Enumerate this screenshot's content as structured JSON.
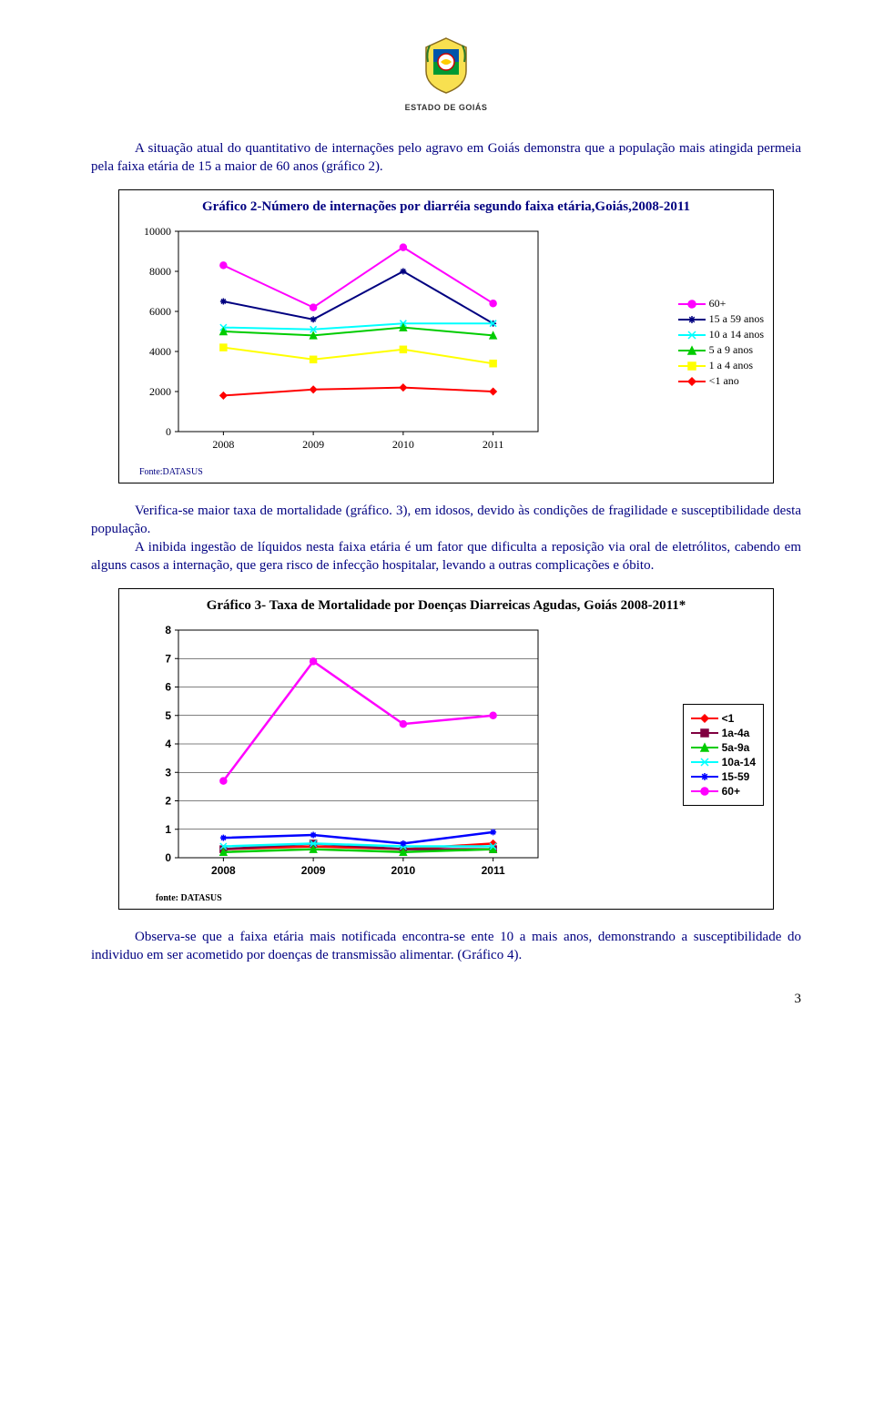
{
  "header": {
    "state_label": "ESTADO DE GOIÁS"
  },
  "paragraphs": {
    "p1": "A situação atual do quantitativo de internações pelo agravo em Goiás demonstra que a população mais atingida permeia pela faixa etária de 15 a maior de 60 anos (gráfico 2).",
    "p2a": "Verifica-se maior taxa de mortalidade (gráfico. 3), em idosos, devido às condições de fragilidade e susceptibilidade desta população.",
    "p2b": "A inibida ingestão de líquidos nesta faixa etária é um fator que dificulta a reposição via oral de eletrólitos, cabendo em alguns casos a internação, que gera risco de infecção hospitalar, levando a outras complicações e óbito.",
    "p3": "Observa-se que a faixa etária mais notificada encontra-se ente 10 a mais anos, demonstrando a susceptibilidade do individuo em ser acometido por doenças de transmissão alimentar. (Gráfico 4)."
  },
  "chart2": {
    "title": "Gráfico 2-Número de internações por diarréia segundo faixa etária,Goiás,2008-2011",
    "type": "line",
    "x_labels": [
      "2008",
      "2009",
      "2010",
      "2011"
    ],
    "y_ticks": [
      0,
      2000,
      4000,
      6000,
      8000,
      10000
    ],
    "ylim": [
      0,
      10000
    ],
    "background_color": "#ffffff",
    "plot_bg": "#ffffff",
    "axis_color": "#000000",
    "text_color": "#000000",
    "marker_size": 7,
    "line_width": 2,
    "series": [
      {
        "label": "60+",
        "color": "#ff00ff",
        "marker": "circle",
        "values": [
          8300,
          6200,
          9200,
          6400
        ]
      },
      {
        "label": "15 a 59 anos",
        "color": "#000080",
        "marker": "star",
        "values": [
          6500,
          5600,
          8000,
          5400
        ]
      },
      {
        "label": "10 a 14 anos",
        "color": "#00ffff",
        "marker": "x",
        "values": [
          5200,
          5100,
          5400,
          5400
        ]
      },
      {
        "label": "5 a 9 anos",
        "color": "#00cc00",
        "marker": "triangle",
        "values": [
          5000,
          4800,
          5200,
          4800
        ]
      },
      {
        "label": "1 a 4 anos",
        "color": "#ffff00",
        "marker": "square",
        "values": [
          4200,
          3600,
          4100,
          3400
        ]
      },
      {
        "label": "<1 ano",
        "color": "#ff0000",
        "marker": "diamond",
        "values": [
          1800,
          2100,
          2200,
          2000
        ]
      }
    ],
    "source_label": "Fonte:DATASUS"
  },
  "chart3": {
    "title": "Gráfico 3- Taxa de Mortalidade por Doenças Diarreicas Agudas, Goiás 2008-2011*",
    "type": "line",
    "x_labels": [
      "2008",
      "2009",
      "2010",
      "2011"
    ],
    "y_ticks": [
      0,
      1,
      2,
      3,
      4,
      5,
      6,
      7,
      8
    ],
    "ylim": [
      0,
      8
    ],
    "background_color": "#ffffff",
    "plot_bg": "#ffffff",
    "axis_color": "#000000",
    "grid_color": "#000000",
    "text_color": "#000000",
    "marker_size": 7,
    "line_width": 2.5,
    "series": [
      {
        "label": "<1",
        "color": "#ff0000",
        "marker": "diamond",
        "values": [
          0.3,
          0.4,
          0.3,
          0.5
        ]
      },
      {
        "label": "1a-4a",
        "color": "#800040",
        "marker": "square",
        "values": [
          0.3,
          0.5,
          0.3,
          0.3
        ]
      },
      {
        "label": "5a-9a",
        "color": "#00cc00",
        "marker": "triangle",
        "values": [
          0.2,
          0.3,
          0.2,
          0.3
        ]
      },
      {
        "label": "10a-14",
        "color": "#00ffff",
        "marker": "x",
        "values": [
          0.4,
          0.5,
          0.4,
          0.4
        ]
      },
      {
        "label": "15-59",
        "color": "#0000ff",
        "marker": "star",
        "values": [
          0.7,
          0.8,
          0.5,
          0.9
        ]
      },
      {
        "label": "60+",
        "color": "#ff00ff",
        "marker": "circle",
        "values": [
          2.7,
          6.9,
          4.7,
          5.0
        ]
      }
    ],
    "source_label": "fonte: DATASUS"
  },
  "page_number": "3"
}
